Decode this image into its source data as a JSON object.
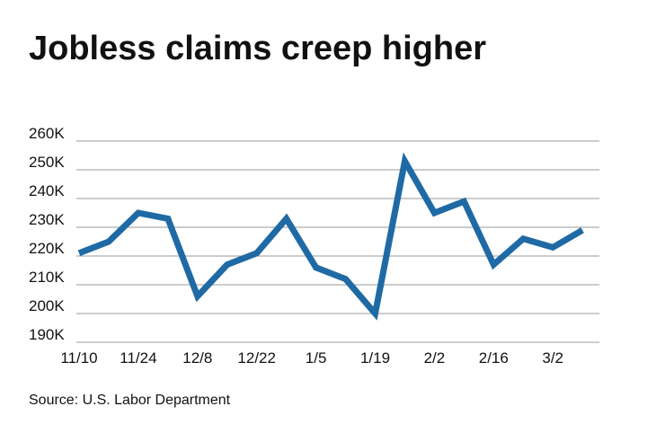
{
  "chart_data": {
    "type": "line",
    "title": "Jobless claims creep higher",
    "source": "Source: U.S. Labor Department",
    "categories": [
      "11/10",
      null,
      "11/24",
      null,
      "12/8",
      null,
      "12/22",
      null,
      "1/5",
      null,
      "1/19",
      null,
      "2/2",
      null,
      "2/16",
      null,
      "3/2",
      null
    ],
    "values": [
      221000,
      225000,
      235000,
      233000,
      206000,
      217000,
      221000,
      233000,
      216000,
      212000,
      200000,
      253000,
      235000,
      239000,
      217000,
      226000,
      223000,
      229000
    ],
    "color": "#1f6aa5",
    "ylim": [
      190000,
      260000
    ],
    "yticks": [
      {
        "value": 190000,
        "label": "190K"
      },
      {
        "value": 200000,
        "label": "200K"
      },
      {
        "value": 210000,
        "label": "210K"
      },
      {
        "value": 220000,
        "label": "220K"
      },
      {
        "value": 230000,
        "label": "230K"
      },
      {
        "value": 240000,
        "label": "240K"
      },
      {
        "value": 250000,
        "label": "250K"
      },
      {
        "value": 260000,
        "label": "260K"
      }
    ],
    "grid": true
  }
}
